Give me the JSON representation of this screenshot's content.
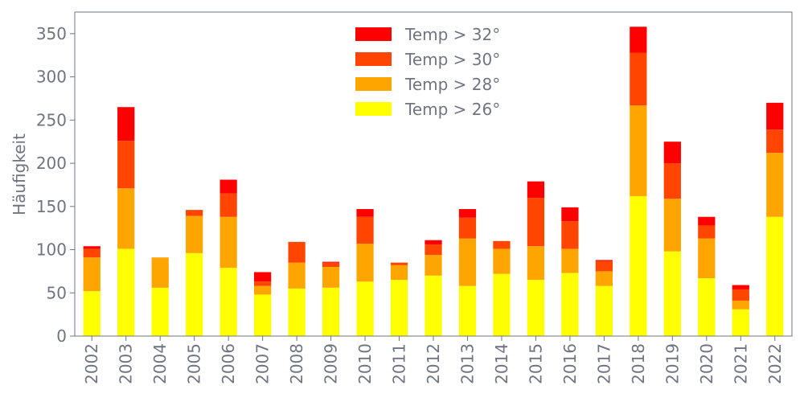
{
  "chart_data": {
    "type": "bar",
    "stacked": true,
    "title": "",
    "xlabel": "",
    "ylabel": "Häufigkeit",
    "ylim": [
      0,
      375
    ],
    "yticks": [
      0,
      50,
      100,
      150,
      200,
      250,
      300,
      350
    ],
    "grid": false,
    "legend_position": "top-center",
    "categories": [
      "2002",
      "2003",
      "2004",
      "2005",
      "2006",
      "2007",
      "2008",
      "2009",
      "2010",
      "2011",
      "2012",
      "2013",
      "2014",
      "2015",
      "2016",
      "2017",
      "2018",
      "2019",
      "2020",
      "2021",
      "2022"
    ],
    "series": [
      {
        "name": "Temp > 26°",
        "color": "#ffff00",
        "values": [
          52,
          101,
          56,
          96,
          79,
          48,
          55,
          56,
          63,
          65,
          70,
          58,
          72,
          65,
          73,
          58,
          162,
          98,
          67,
          31,
          138
        ]
      },
      {
        "name": "Temp > 28°",
        "color": "#ffa500",
        "values": [
          39,
          70,
          35,
          43,
          59,
          10,
          30,
          24,
          44,
          17,
          24,
          55,
          29,
          39,
          28,
          17,
          105,
          61,
          46,
          10,
          74
        ]
      },
      {
        "name": "Temp > 30°",
        "color": "#ff4500",
        "values": [
          10,
          55,
          0,
          7,
          27,
          5,
          24,
          5,
          31,
          3,
          12,
          24,
          9,
          56,
          32,
          12,
          61,
          41,
          15,
          13,
          27
        ]
      },
      {
        "name": "Temp > 32°",
        "color": "#ff0000",
        "values": [
          3,
          39,
          0,
          0,
          16,
          11,
          0,
          1,
          9,
          0,
          5,
          10,
          0,
          19,
          16,
          1,
          30,
          25,
          10,
          5,
          31
        ]
      }
    ],
    "legend_order": [
      "Temp > 32°",
      "Temp > 30°",
      "Temp > 28°",
      "Temp > 26°"
    ]
  }
}
